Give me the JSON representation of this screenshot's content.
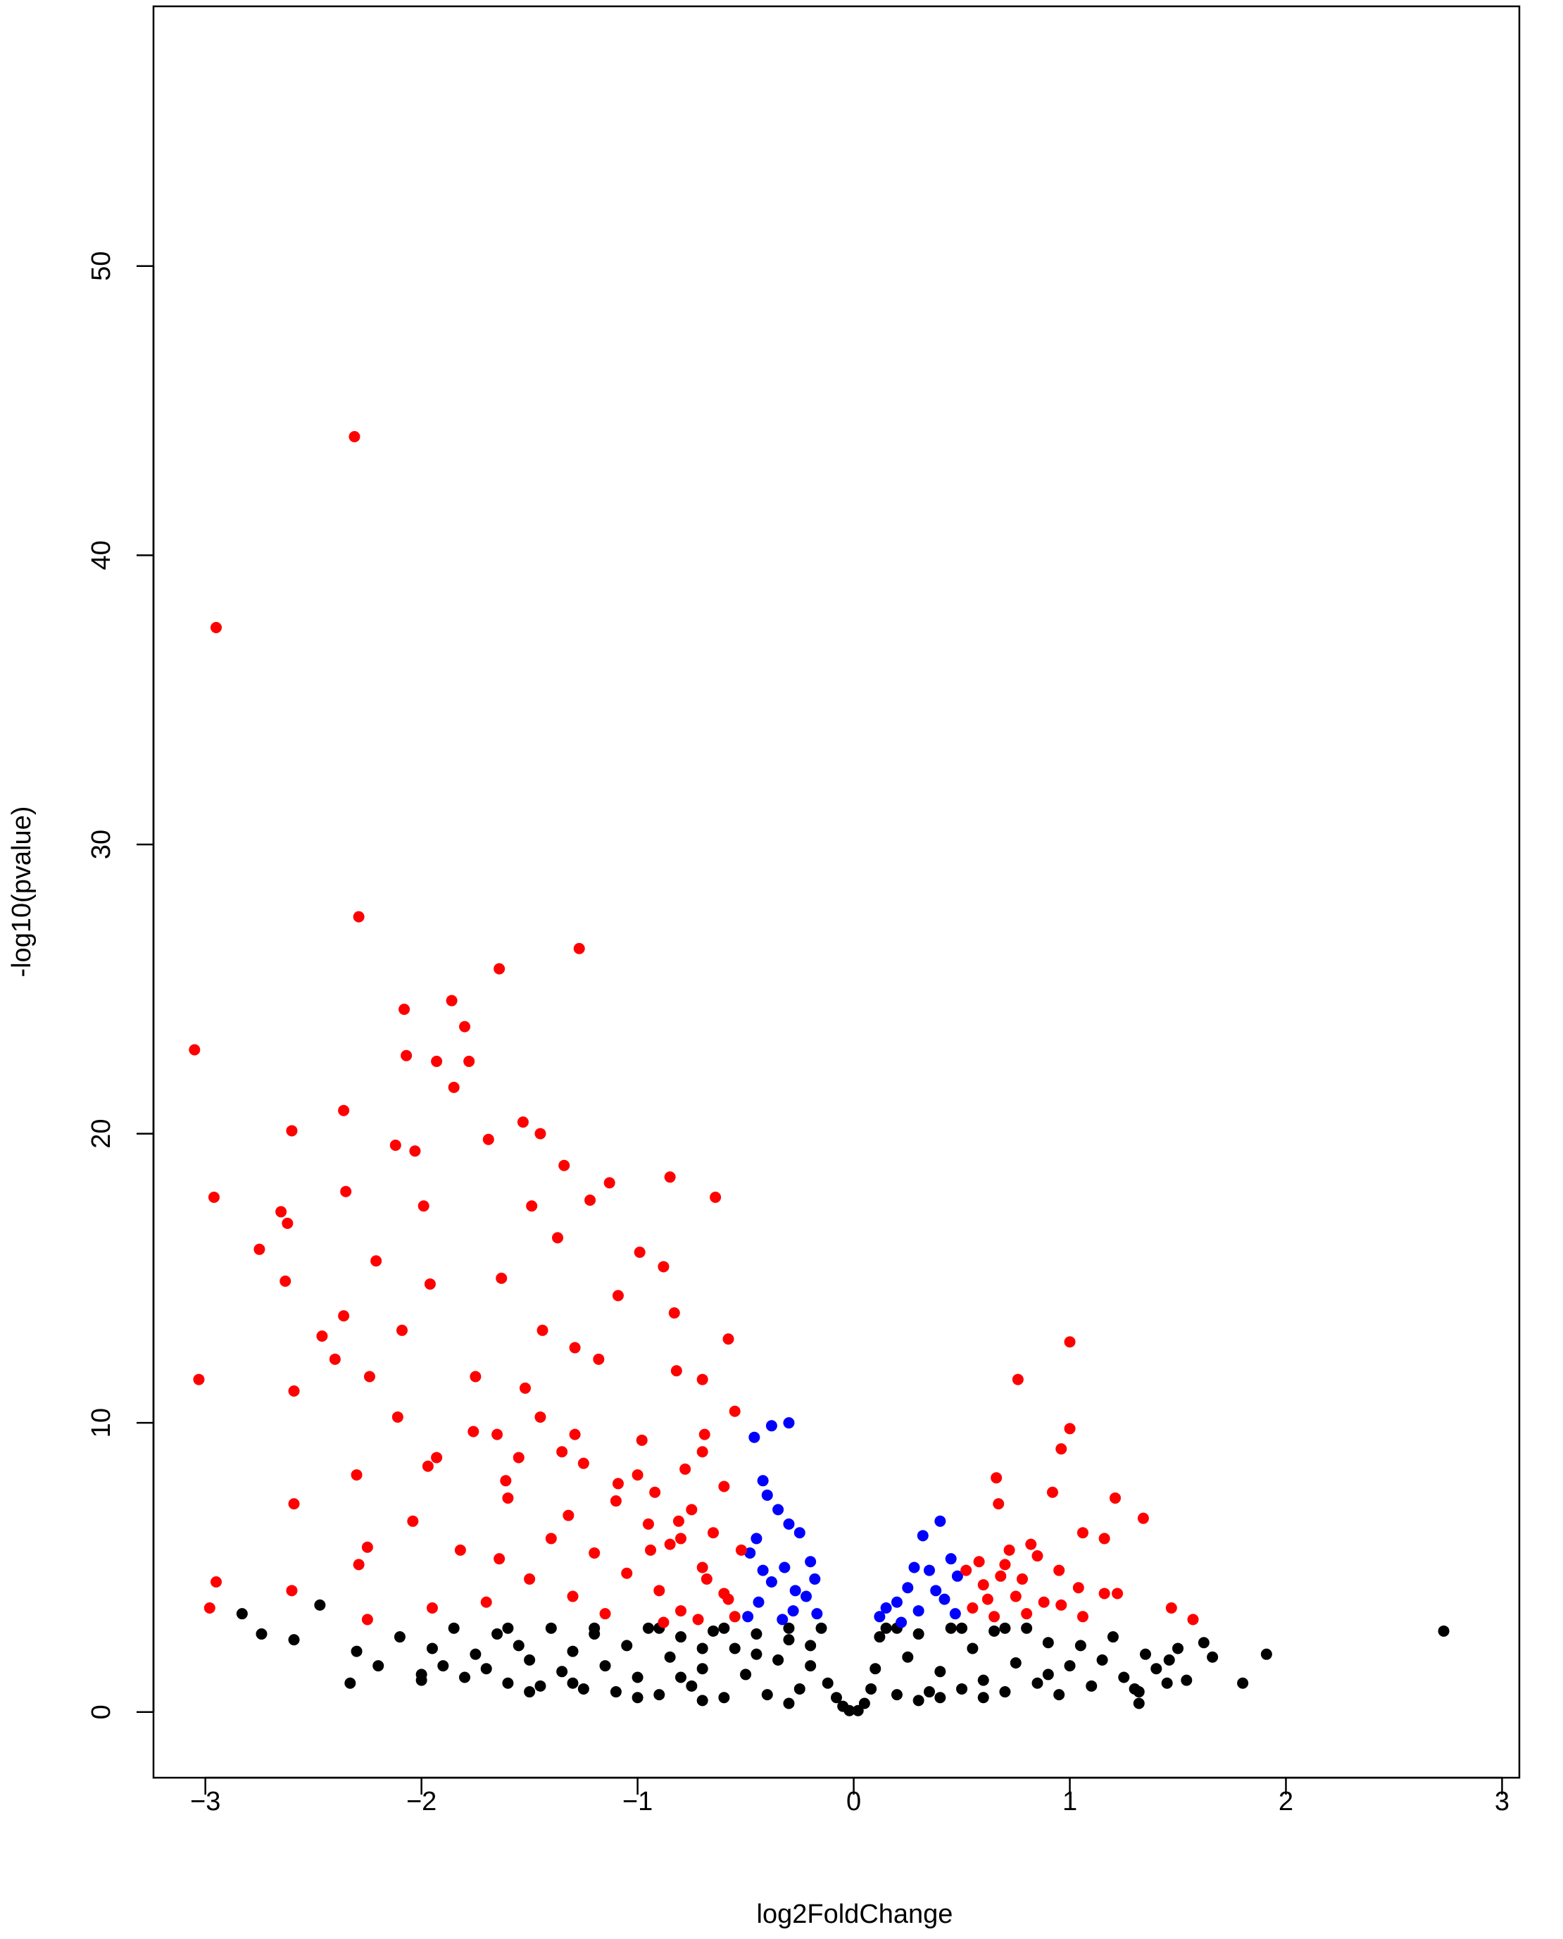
{
  "chart_data": {
    "type": "scatter",
    "xlabel": "log2FoldChange",
    "ylabel": "-log10(pvalue)",
    "xlim": [
      -3.24,
      3.08
    ],
    "ylim": [
      -2.27,
      58.98
    ],
    "xticks": [
      {
        "value": -3,
        "label": "−3"
      },
      {
        "value": -2,
        "label": "−2"
      },
      {
        "value": -1,
        "label": "−1"
      },
      0,
      1,
      2,
      3
    ],
    "yticks": [
      0,
      10,
      20,
      30,
      40,
      50
    ],
    "series": [
      {
        "color": "#000000",
        "x": [
          2.73,
          1.91,
          1.8,
          1.66,
          1.32,
          1.32,
          -2.83,
          -2.47,
          -2.33,
          -2.74,
          -2.59,
          1.62,
          1.54,
          1.46,
          -2.3,
          -2.2,
          -2.1,
          -2.0,
          -1.95,
          -1.9,
          -1.85,
          -1.8,
          -1.75,
          -1.7,
          -1.65,
          -1.6,
          -1.55,
          -1.5,
          -1.45,
          -1.4,
          -1.35,
          -1.3,
          -1.25,
          -1.2,
          -1.15,
          -1.1,
          -1.05,
          -1.0,
          -0.95,
          -0.9,
          -0.85,
          -0.8,
          -0.75,
          -0.7,
          -0.65,
          -0.6,
          -0.55,
          -0.5,
          -0.45,
          -0.4,
          -0.35,
          -0.3,
          -0.25,
          -0.2,
          -0.15,
          -0.12,
          -0.08,
          -0.05,
          -0.02,
          -1.0,
          -0.7,
          -0.3,
          -1.5,
          -2.0,
          -1.2,
          -0.9,
          -0.6,
          -0.3,
          -1.6,
          -0.8,
          -0.45,
          -1.3,
          -0.2,
          -0.7,
          0.02,
          0.05,
          0.08,
          0.1,
          0.12,
          0.15,
          0.2,
          0.25,
          0.3,
          0.35,
          0.4,
          0.45,
          0.5,
          0.55,
          0.6,
          0.65,
          0.7,
          0.75,
          0.8,
          0.85,
          0.9,
          0.95,
          1.0,
          1.05,
          1.1,
          1.15,
          1.2,
          1.25,
          1.3,
          1.35,
          1.4,
          1.45,
          1.5,
          0.3,
          0.6,
          0.2,
          0.5,
          0.7,
          0.4,
          0.9
        ],
        "values": [
          2.8,
          2.0,
          1.0,
          1.9,
          0.3,
          0.7,
          3.4,
          3.7,
          1.0,
          2.7,
          2.5,
          2.4,
          1.1,
          1.8,
          2.1,
          1.6,
          2.6,
          1.3,
          2.2,
          1.6,
          2.9,
          1.2,
          2.0,
          1.5,
          2.7,
          1.0,
          2.3,
          1.8,
          0.9,
          2.9,
          1.4,
          2.1,
          0.8,
          2.7,
          1.6,
          0.7,
          2.3,
          1.2,
          2.9,
          0.6,
          1.9,
          2.6,
          0.9,
          1.5,
          2.8,
          0.5,
          2.2,
          1.3,
          2.7,
          0.6,
          1.8,
          2.5,
          0.8,
          1.6,
          2.9,
          1.0,
          0.5,
          0.2,
          0.05,
          0.5,
          0.4,
          0.3,
          0.7,
          1.1,
          2.9,
          2.9,
          2.9,
          2.9,
          2.9,
          1.2,
          2.0,
          1.0,
          2.3,
          2.2,
          0.05,
          0.3,
          0.8,
          1.5,
          2.6,
          2.9,
          0.6,
          1.9,
          2.7,
          0.7,
          1.4,
          2.9,
          0.8,
          2.2,
          1.1,
          2.8,
          0.7,
          1.7,
          2.9,
          1.0,
          2.4,
          0.6,
          1.6,
          2.3,
          0.9,
          1.8,
          2.6,
          1.2,
          0.8,
          2.0,
          1.5,
          1.0,
          2.2,
          0.4,
          0.5,
          2.9,
          2.9,
          2.9,
          0.5,
          1.3
        ]
      },
      {
        "color": "#0000ff",
        "x": [
          -0.3,
          -0.38,
          -0.46,
          -0.42,
          -0.4,
          -0.35,
          -0.3,
          -0.25,
          -0.45,
          -0.48,
          -0.2,
          -0.18,
          -0.22,
          -0.28,
          -0.33,
          -0.44,
          -0.38,
          -0.32,
          -0.27,
          -0.17,
          -0.49,
          -0.42,
          0.12,
          0.2,
          0.25,
          0.32,
          0.4,
          0.45,
          0.48,
          0.35,
          0.3,
          0.42,
          0.22,
          0.38,
          0.47,
          0.15,
          0.28
        ],
        "values": [
          10.0,
          9.9,
          9.5,
          8.0,
          7.5,
          7.0,
          6.5,
          6.2,
          6.0,
          5.5,
          5.2,
          4.6,
          4.0,
          3.5,
          3.2,
          3.8,
          4.5,
          5.0,
          4.2,
          3.4,
          3.3,
          4.9,
          3.3,
          3.8,
          4.3,
          6.1,
          6.6,
          5.3,
          4.7,
          4.9,
          3.5,
          3.9,
          3.1,
          4.2,
          3.4,
          3.6,
          5.0
        ]
      },
      {
        "color": "#ff0000",
        "x": [
          -2.31,
          -2.95,
          -2.29,
          -1.27,
          -1.64,
          -1.86,
          -3.05,
          -2.08,
          -1.8,
          -2.07,
          -1.93,
          -1.78,
          -1.85,
          -2.36,
          -2.6,
          -1.53,
          -1.45,
          -2.12,
          -2.03,
          -1.69,
          -1.34,
          -0.85,
          -2.96,
          -2.35,
          -0.64,
          -1.13,
          -1.22,
          -1.99,
          -2.65,
          -1.49,
          -2.75,
          -2.62,
          -1.37,
          -0.99,
          -0.88,
          -2.21,
          -2.63,
          -1.96,
          -1.63,
          -1.09,
          -0.83,
          -2.36,
          -2.46,
          -2.09,
          -1.44,
          -0.58,
          1.0,
          -2.4,
          -1.29,
          -1.18,
          -3.03,
          0.76,
          -2.24,
          -1.75,
          -0.7,
          -2.59,
          -1.52,
          -0.82,
          -2.11,
          -0.55,
          1.0,
          0.96,
          -1.76,
          -1.29,
          -0.98,
          -0.69,
          -2.3,
          -1.93,
          -1.97,
          0.66,
          -1.61,
          -1.09,
          -2.59,
          0.92,
          1.21,
          1.34,
          0.67,
          -2.04,
          -1.32,
          -0.81,
          1.06,
          1.16,
          -2.25,
          -1.82,
          -2.29,
          -1.64,
          -0.94,
          -2.95,
          -2.6,
          1.04,
          1.22,
          1.16,
          -2.98,
          -1.95,
          1.47,
          1.57,
          -2.25,
          0.96,
          1.06,
          -0.9,
          -0.8,
          -0.7,
          -0.6,
          -0.55,
          -0.65,
          -0.75,
          -0.85,
          -0.95,
          -1.05,
          -1.1,
          -1.2,
          -1.3,
          -1.4,
          -1.5,
          -1.6,
          -1.7,
          -1.0,
          -0.6,
          -0.52,
          -0.58,
          -0.72,
          -0.88,
          -1.15,
          -0.68,
          -0.8,
          -0.92,
          -1.25,
          -1.35,
          -1.45,
          -1.55,
          -1.65,
          -0.7,
          -0.78,
          0.52,
          0.55,
          0.6,
          0.65,
          0.7,
          0.75,
          0.8,
          0.85,
          0.58,
          0.68,
          0.62,
          0.78,
          0.88,
          0.95,
          0.72,
          0.82
        ],
        "values": [
          44.1,
          37.5,
          27.5,
          26.4,
          25.7,
          24.6,
          22.9,
          24.3,
          23.7,
          22.7,
          22.5,
          22.5,
          21.6,
          20.8,
          20.1,
          20.4,
          20.0,
          19.6,
          19.4,
          19.8,
          18.9,
          18.5,
          17.8,
          18.0,
          17.8,
          18.3,
          17.7,
          17.5,
          17.3,
          17.5,
          16.0,
          16.9,
          16.4,
          15.9,
          15.4,
          15.6,
          14.9,
          14.8,
          15.0,
          14.4,
          13.8,
          13.7,
          13.0,
          13.2,
          13.2,
          12.9,
          12.8,
          12.2,
          12.6,
          12.2,
          11.5,
          11.5,
          11.6,
          11.6,
          11.5,
          11.1,
          11.2,
          11.8,
          10.2,
          10.4,
          9.8,
          9.1,
          9.7,
          9.6,
          9.4,
          9.6,
          8.2,
          8.8,
          8.5,
          8.1,
          8.0,
          7.9,
          7.2,
          7.6,
          7.4,
          6.7,
          7.2,
          6.6,
          6.8,
          6.6,
          6.2,
          6.0,
          5.7,
          5.6,
          5.1,
          5.3,
          5.6,
          4.5,
          4.2,
          4.3,
          4.1,
          4.1,
          3.6,
          3.6,
          3.6,
          3.2,
          3.2,
          3.7,
          3.3,
          4.2,
          3.5,
          5.0,
          4.1,
          3.3,
          6.2,
          7.0,
          5.8,
          6.5,
          4.8,
          7.3,
          5.5,
          4.0,
          6.0,
          4.6,
          7.4,
          3.8,
          8.2,
          7.8,
          5.6,
          3.9,
          3.2,
          3.1,
          3.4,
          4.6,
          6.0,
          7.6,
          8.6,
          9.0,
          10.2,
          8.8,
          9.6,
          9.0,
          8.4,
          4.9,
          3.6,
          4.4,
          3.3,
          5.1,
          4.0,
          3.4,
          5.4,
          5.2,
          4.7,
          3.9,
          4.6,
          3.8,
          4.9,
          5.6,
          5.8
        ]
      }
    ]
  }
}
